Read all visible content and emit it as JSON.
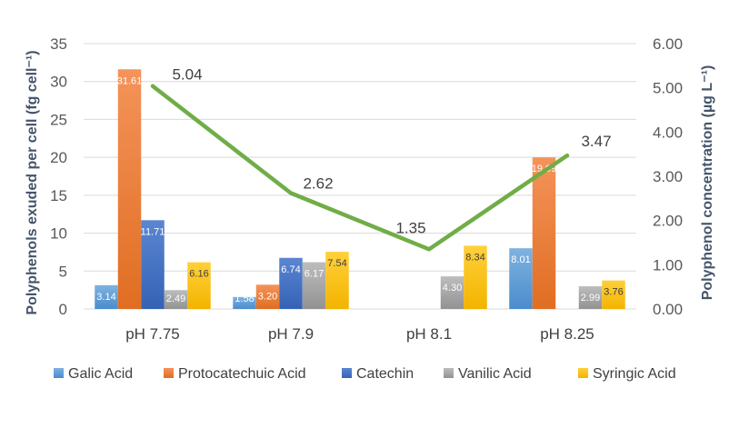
{
  "chart_data": {
    "type": "bar",
    "categories": [
      "pH 7.75",
      "pH 7.9",
      "pH 8.1",
      "pH 8.25"
    ],
    "ylabel": "Polyphenols exuded per cell (fg cell⁻¹)",
    "y2label": "Polyphenol concentration (µg L⁻¹)",
    "ylim": [
      0,
      35
    ],
    "y_ticks": [
      "0",
      "5",
      "10",
      "15",
      "20",
      "25",
      "30",
      "35"
    ],
    "y2lim": [
      0,
      6
    ],
    "y2_ticks": [
      "0.00",
      "1.00",
      "2.00",
      "3.00",
      "4.00",
      "5.00",
      "6.00"
    ],
    "grid": true,
    "legend_position": "bottom",
    "series": [
      {
        "name": "Galic Acid",
        "color": "#5b9bd5",
        "values": [
          3.14,
          1.58,
          null,
          8.01
        ],
        "labels": [
          "3.14",
          "1.58",
          "",
          "8.01"
        ]
      },
      {
        "name": "Protocatechuic Acid",
        "color": "#ed7d31",
        "values": [
          31.61,
          3.2,
          null,
          19.99
        ],
        "labels": [
          "31.61",
          "3.20",
          "",
          "19.99"
        ]
      },
      {
        "name": "Catechin",
        "color": "#4472c4",
        "values": [
          11.71,
          6.74,
          null,
          null
        ],
        "labels": [
          "11.71",
          "6.74",
          "",
          ""
        ]
      },
      {
        "name": "Vanilic Acid",
        "color": "#a5a5a5",
        "values": [
          2.49,
          6.17,
          4.3,
          2.99
        ],
        "labels": [
          "2.49",
          "6.17",
          "4.30",
          "2.99"
        ]
      },
      {
        "name": "Syringic Acid",
        "color": "#ffc000",
        "values": [
          6.16,
          7.54,
          8.34,
          3.76
        ],
        "labels": [
          "6.16",
          "7.54",
          "8.34",
          "3.76"
        ]
      }
    ],
    "line": {
      "axis": "secondary",
      "color": "#70ad47",
      "values": [
        5.04,
        2.62,
        1.35,
        3.47
      ],
      "labels": [
        "5.04",
        "2.62",
        "1.35",
        "3.47"
      ]
    }
  }
}
